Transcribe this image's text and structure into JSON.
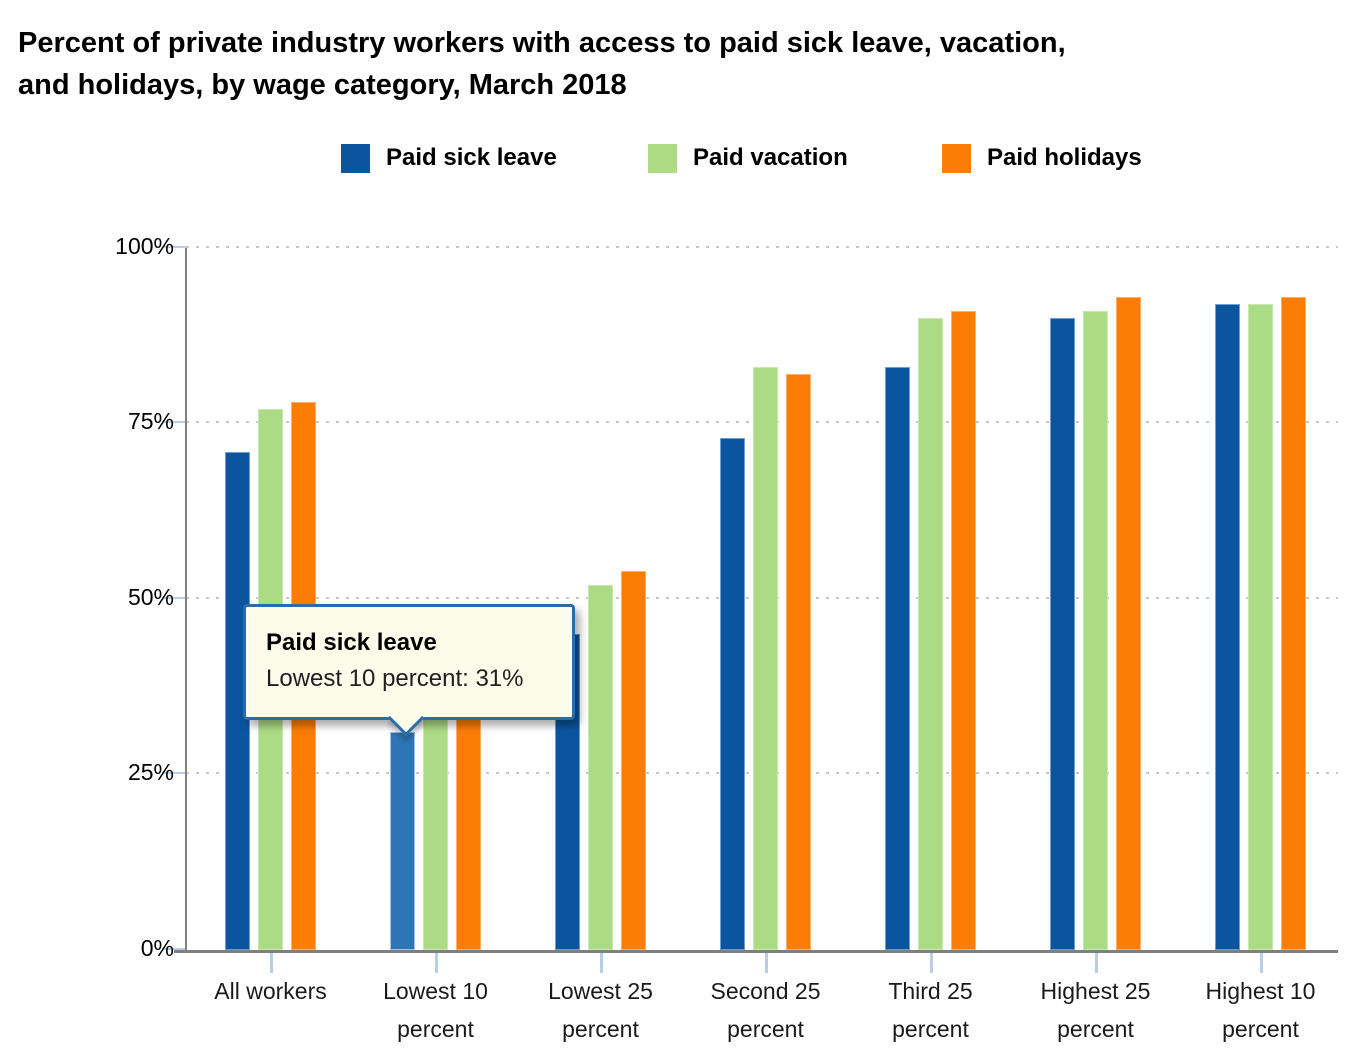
{
  "title": "Percent of private industry workers with access to paid sick leave, vacation,\nand holidays, by wage category, March 2018",
  "legend": [
    {
      "label": "Paid sick leave",
      "color": "#0B559F"
    },
    {
      "label": "Paid vacation",
      "color": "#ACDB86"
    },
    {
      "label": "Paid holidays",
      "color": "#FB7D05"
    }
  ],
  "chart_data": {
    "type": "bar",
    "title": "Percent of private industry workers with access to paid sick leave, vacation, and holidays, by wage category, March 2018",
    "categories": [
      "All workers",
      "Lowest 10 percent",
      "Lowest 25 percent",
      "Second 25 percent",
      "Third 25 percent",
      "Highest 25 percent",
      "Highest 10 percent"
    ],
    "series": [
      {
        "name": "Paid sick leave",
        "color": "#0B559F",
        "border": "#6f9fd0",
        "values": [
          71,
          31,
          45,
          73,
          83,
          90,
          92
        ]
      },
      {
        "name": "Paid vacation",
        "color": "#ACDB86",
        "border": "#c9e8ad",
        "values": [
          77,
          40,
          52,
          83,
          90,
          91,
          92
        ]
      },
      {
        "name": "Paid holidays",
        "color": "#FB7D05",
        "border": "#fdb06a",
        "values": [
          78,
          45,
          54,
          82,
          91,
          93,
          93
        ]
      }
    ],
    "xlabel": "",
    "ylabel": "",
    "ylim": [
      0,
      100
    ],
    "yticks": [
      0,
      25,
      50,
      75,
      100
    ],
    "ytick_suffix": "%",
    "grid": "horizontal-dotted",
    "legend_position": "top"
  },
  "tooltip": {
    "title": "Paid sick leave",
    "body": "Lowest 10 percent: 31%",
    "target_series": "Paid sick leave",
    "target_category": "Lowest 10 percent",
    "highlight_color": "#2E75B6",
    "highlight_border": "#9DC3E6",
    "background": "#FCFCEA",
    "border_color": "#2B6CA8"
  },
  "colors": {
    "gridline": "#C8C8C8",
    "axis": "#7F7F7F",
    "tick": "#B9CDE5",
    "background": "#FFFFFF"
  }
}
